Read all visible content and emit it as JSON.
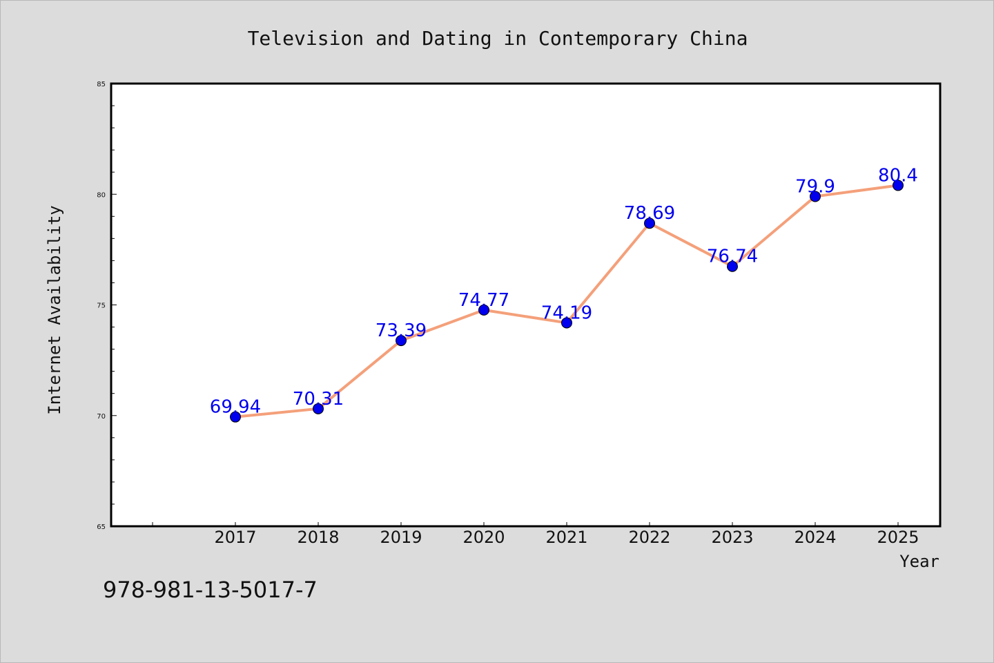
{
  "chart_data": {
    "type": "line",
    "title": "Television and Dating in Contemporary China",
    "xlabel": "Year",
    "ylabel": "Internet Availability",
    "categories": [
      "2017",
      "2018",
      "2019",
      "2020",
      "2021",
      "2022",
      "2023",
      "2024",
      "2025"
    ],
    "series": [
      {
        "values": [
          69.94,
          70.31,
          73.39,
          74.77,
          74.19,
          78.69,
          76.74,
          79.9,
          80.4
        ],
        "data_labels": [
          "69.94",
          "70.31",
          "73.39",
          "74.77",
          "74.19",
          "78.69",
          "76.74",
          "79.9",
          "80.4"
        ],
        "line_color": "#f4a07a",
        "marker_color": "#0000ee",
        "label_color": "#0000ee"
      }
    ],
    "ylim": [
      65,
      85
    ],
    "y_ticks": [
      "65",
      "70",
      "75",
      "80",
      "85"
    ],
    "grid": false,
    "legend": "none"
  },
  "footer": {
    "isbn": "978-981-13-5017-7"
  }
}
